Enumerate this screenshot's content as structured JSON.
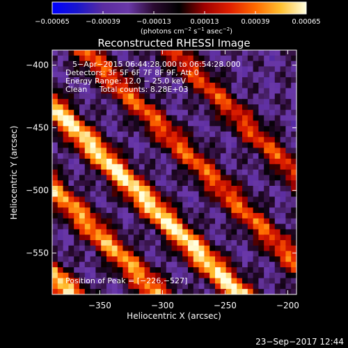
{
  "chart_data": {
    "type": "heatmap",
    "title": "Reconstructed RHESSI Image",
    "xlabel": "Heliocentric X (arcsec)",
    "ylabel": "Heliocentric Y (arcsec)",
    "xlim": [
      -388,
      -193
    ],
    "ylim": [
      -583,
      -388
    ],
    "xticks": [
      {
        "value": -350,
        "label": "−350"
      },
      {
        "value": -300,
        "label": "−300"
      },
      {
        "value": -250,
        "label": "−250"
      },
      {
        "value": -200,
        "label": "−200"
      }
    ],
    "yticks": [
      {
        "value": -400,
        "label": "−400"
      },
      {
        "value": -450,
        "label": "−450"
      },
      {
        "value": -500,
        "label": "−500"
      },
      {
        "value": -550,
        "label": "−550"
      }
    ],
    "colorbar": {
      "range": [
        -0.00065,
        0.00065
      ],
      "ticks": [
        {
          "value": -0.00065,
          "label": "−0.00065"
        },
        {
          "value": -0.00039,
          "label": "−0.00039"
        },
        {
          "value": -0.00013,
          "label": "−0.00013"
        },
        {
          "value": 0.00013,
          "label": "0.00013"
        },
        {
          "value": 0.00039,
          "label": "0.00039"
        },
        {
          "value": 0.00065,
          "label": "0.00065"
        }
      ],
      "label_pre": "(photons cm",
      "label_exp1": "−2",
      "label_mid": " s",
      "label_exp2": "−1",
      "label_mid2": " asec",
      "label_exp3": "−2",
      "label_post": ")",
      "colors": [
        "#0000ff",
        "#1a16cc",
        "#5a2ca0",
        "#6a38a8",
        "#2a0a30",
        "#000000",
        "#a00000",
        "#e02000",
        "#ff6a00",
        "#ffc030",
        "#ffffe0"
      ]
    },
    "annotations": [
      "5−Apr−2015 06:44:28.000 to 06:54:28.000",
      "Detectors: 3F 5F 6F 7F 8F 9F, Att 0",
      "Energy Range: 12.0 − 25.0 keV",
      "Clean     Total counts: 8.28E+03"
    ],
    "peak_label": "Position of Peak = [−226,−527]",
    "peak": [
      -226,
      -527
    ],
    "ridges": [
      {
        "offset": -180,
        "amp": 0.00062
      },
      {
        "offset": -110,
        "amp": 0.00048
      },
      {
        "offset": -45,
        "amp": 0.00065
      },
      {
        "offset": 25,
        "amp": 0.00035
      },
      {
        "offset": 95,
        "amp": 0.0003
      }
    ],
    "grid": false
  },
  "footer": {
    "timestamp": "23−Sep−2017 12:44"
  }
}
